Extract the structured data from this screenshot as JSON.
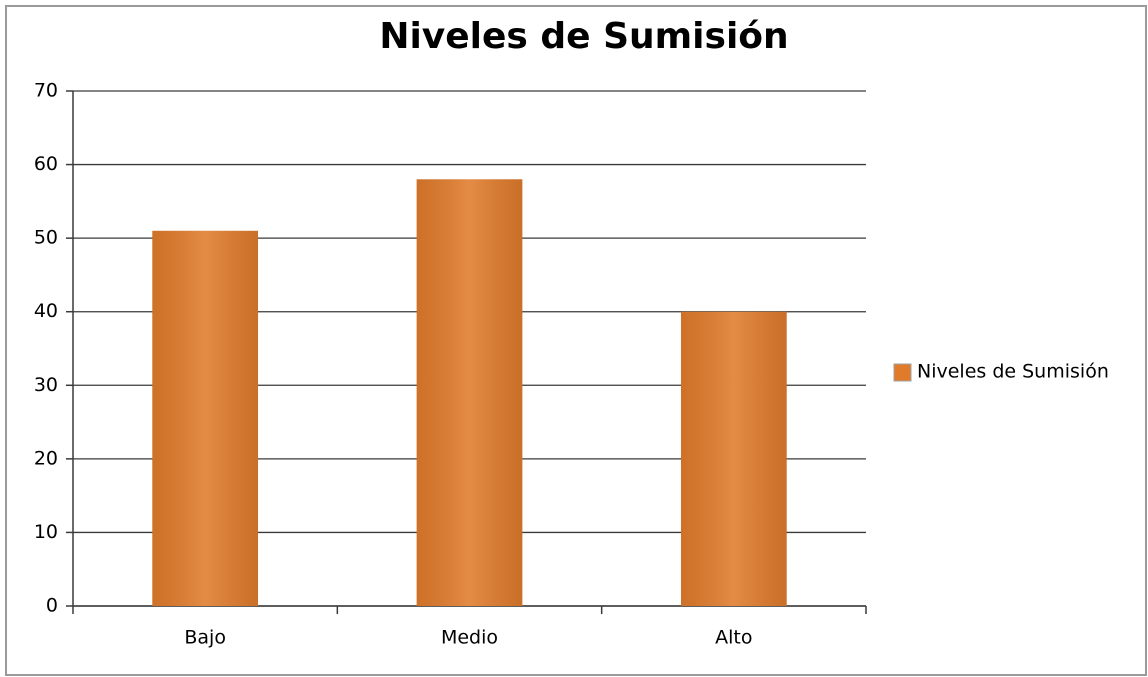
{
  "chart_data": {
    "type": "bar",
    "title": "Niveles de Sumisión",
    "categories": [
      "Bajo",
      "Medio",
      "Alto"
    ],
    "series": [
      {
        "name": "Niveles de Sumisión",
        "color": "#e07b2c",
        "values": [
          51,
          58,
          40
        ]
      }
    ],
    "ylim": [
      0,
      70
    ],
    "yticks": [
      0,
      10,
      20,
      30,
      40,
      50,
      60,
      70
    ],
    "grid": true,
    "legend": "right"
  }
}
